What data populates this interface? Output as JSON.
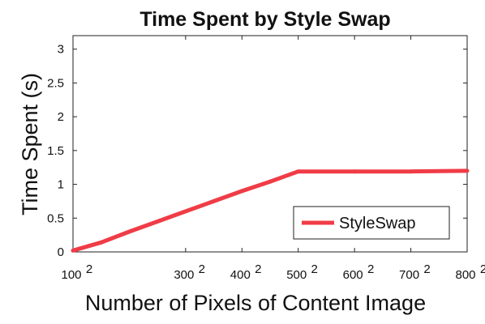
{
  "chart_data": {
    "type": "line",
    "title": "Time Spent by Style Swap",
    "xlabel": "Number of Pixels of Content Image",
    "ylabel": "Time Spent (s)",
    "x": [
      100,
      150,
      200,
      250,
      300,
      350,
      400,
      450,
      500,
      600,
      700,
      800
    ],
    "x_tick_values": [
      100,
      300,
      400,
      500,
      600,
      700,
      800
    ],
    "x_tick_labels": [
      "100",
      "300",
      "400",
      "500",
      "600",
      "700",
      "800"
    ],
    "x_tick_exponent": "2",
    "y_tick_values": [
      0,
      0.5,
      1,
      1.5,
      2,
      2.5,
      3
    ],
    "y_tick_labels": [
      "0",
      "0.5",
      "1",
      "1.5",
      "2",
      "2.5",
      "3"
    ],
    "xlim": [
      100,
      800
    ],
    "ylim": [
      0,
      3.2
    ],
    "grid": false,
    "legend_position": "bottom-right",
    "series": [
      {
        "name": "StyleSwap",
        "color": "#f03c46",
        "values": [
          0.02,
          0.14,
          0.3,
          0.45,
          0.6,
          0.75,
          0.9,
          1.04,
          1.19,
          1.19,
          1.19,
          1.2
        ]
      }
    ]
  }
}
